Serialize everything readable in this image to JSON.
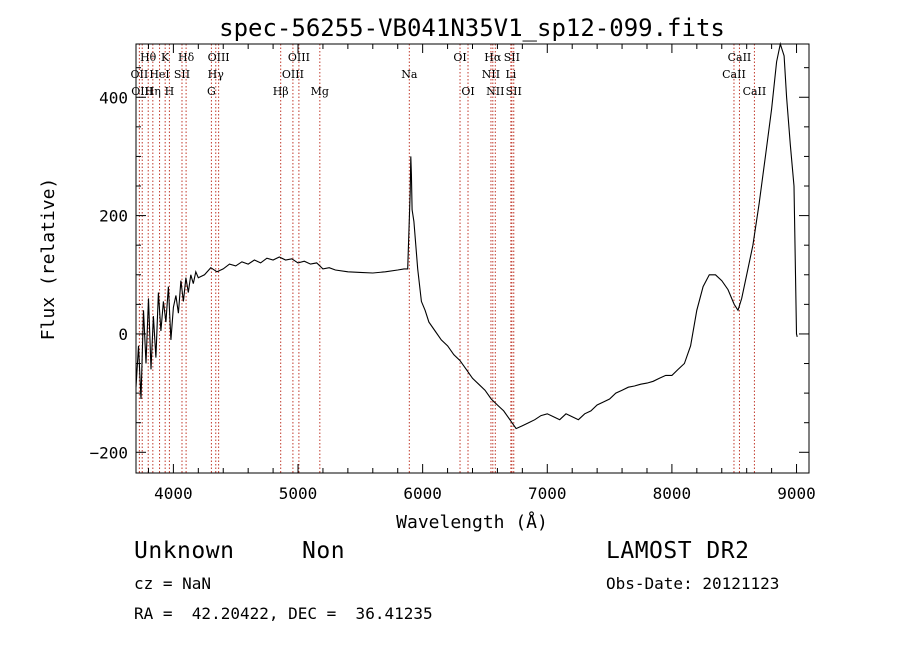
{
  "chart_data": {
    "type": "line",
    "title": "spec-56255-VB041N35V1_sp12-099.fits",
    "xlabel": "Wavelength (Å)",
    "ylabel": "Flux (relative)",
    "xlim": [
      3700,
      9100
    ],
    "ylim": [
      -235,
      490
    ],
    "xticks": [
      4000,
      5000,
      6000,
      7000,
      8000,
      9000
    ],
    "yticks": [
      -200,
      0,
      200,
      400
    ],
    "xticklabels": [
      "4000",
      "5000",
      "6000",
      "7000",
      "8000",
      "9000"
    ],
    "yticklabels": [
      "−200",
      "0",
      "200",
      "400"
    ],
    "grid": false,
    "series": [
      {
        "name": "flux",
        "color": "#000000",
        "x": [
          3700,
          3720,
          3740,
          3760,
          3780,
          3800,
          3820,
          3840,
          3860,
          3880,
          3900,
          3920,
          3940,
          3960,
          3980,
          4000,
          4020,
          4040,
          4060,
          4080,
          4100,
          4120,
          4140,
          4160,
          4180,
          4200,
          4250,
          4300,
          4350,
          4400,
          4450,
          4500,
          4550,
          4600,
          4650,
          4700,
          4750,
          4800,
          4850,
          4900,
          4950,
          5000,
          5050,
          5100,
          5150,
          5200,
          5250,
          5300,
          5400,
          5500,
          5600,
          5700,
          5800,
          5850,
          5880,
          5900,
          5905,
          5910,
          5915,
          5930,
          5960,
          5990,
          6020,
          6050,
          6100,
          6150,
          6200,
          6250,
          6300,
          6350,
          6400,
          6450,
          6500,
          6550,
          6600,
          6650,
          6700,
          6750,
          6800,
          6850,
          6900,
          6950,
          7000,
          7050,
          7100,
          7150,
          7200,
          7250,
          7300,
          7350,
          7400,
          7450,
          7500,
          7550,
          7600,
          7650,
          7700,
          7750,
          7800,
          7850,
          7900,
          7950,
          8000,
          8050,
          8100,
          8150,
          8200,
          8250,
          8300,
          8350,
          8400,
          8450,
          8500,
          8530,
          8560,
          8600,
          8650,
          8700,
          8750,
          8800,
          8840,
          8870,
          8900,
          8920,
          8950,
          8980,
          9000,
          9005
        ],
        "y": [
          -90,
          -20,
          -110,
          40,
          -50,
          60,
          -60,
          30,
          -40,
          70,
          5,
          55,
          20,
          80,
          -10,
          45,
          65,
          35,
          90,
          55,
          95,
          70,
          100,
          85,
          105,
          95,
          100,
          112,
          105,
          110,
          118,
          115,
          122,
          118,
          125,
          120,
          128,
          125,
          130,
          125,
          127,
          120,
          123,
          118,
          120,
          110,
          112,
          108,
          105,
          104,
          103,
          105,
          108,
          110,
          110,
          240,
          300,
          270,
          210,
          190,
          110,
          55,
          40,
          20,
          5,
          -10,
          -20,
          -35,
          -45,
          -60,
          -75,
          -85,
          -95,
          -110,
          -120,
          -130,
          -145,
          -160,
          -155,
          -150,
          -145,
          -138,
          -135,
          -140,
          -145,
          -135,
          -140,
          -145,
          -135,
          -130,
          -120,
          -115,
          -110,
          -100,
          -95,
          -90,
          -88,
          -85,
          -83,
          -80,
          -75,
          -70,
          -70,
          -60,
          -50,
          -20,
          40,
          80,
          100,
          100,
          90,
          75,
          50,
          40,
          60,
          100,
          150,
          220,
          300,
          380,
          460,
          490,
          470,
          400,
          320,
          250,
          0,
          -5
        ]
      }
    ],
    "line_labels": [
      {
        "label": "Hθ",
        "x": 3798,
        "row": 0,
        "style": "solid"
      },
      {
        "label": "K",
        "x": 3934,
        "row": 0,
        "style": "solid"
      },
      {
        "label": "Hδ",
        "x": 4102,
        "row": 0,
        "style": "solid"
      },
      {
        "label": "OIII",
        "x": 4363,
        "row": 0,
        "style": "solid"
      },
      {
        "label": "OIII",
        "x": 5007,
        "row": 0,
        "style": "solid"
      },
      {
        "label": "OI",
        "x": 6300,
        "row": 0,
        "style": "solid"
      },
      {
        "label": "Hα",
        "x": 6563,
        "row": 0,
        "style": "solid"
      },
      {
        "label": "SII",
        "x": 6716,
        "row": 0,
        "style": "solid"
      },
      {
        "label": "CaII",
        "x": 8542,
        "row": 0,
        "style": "solid"
      },
      {
        "label": "OII",
        "x": 3727,
        "row": 1,
        "style": "solid"
      },
      {
        "label": "HeI",
        "x": 3889,
        "row": 1,
        "style": "solid"
      },
      {
        "label": "SII",
        "x": 4069,
        "row": 1,
        "style": "solid"
      },
      {
        "label": "Hγ",
        "x": 4340,
        "row": 1,
        "style": "solid"
      },
      {
        "label": "OIII",
        "x": 4959,
        "row": 1,
        "style": "solid"
      },
      {
        "label": "Na",
        "x": 5893,
        "row": 1,
        "style": "solid"
      },
      {
        "label": "NII",
        "x": 6548,
        "row": 1,
        "style": "solid"
      },
      {
        "label": "Li",
        "x": 6708,
        "row": 1,
        "style": "solid"
      },
      {
        "label": "CaII",
        "x": 8498,
        "row": 1,
        "style": "solid"
      },
      {
        "label": "OIII",
        "x": 3750,
        "row": 2,
        "style": "solid"
      },
      {
        "label": "Hη",
        "x": 3835,
        "row": 2,
        "style": "solid"
      },
      {
        "label": "H",
        "x": 3968,
        "row": 2,
        "style": "solid"
      },
      {
        "label": "G",
        "x": 4305,
        "row": 2,
        "style": "solid"
      },
      {
        "label": "Hβ",
        "x": 4861,
        "row": 2,
        "style": "solid"
      },
      {
        "label": "Mg",
        "x": 5175,
        "row": 2,
        "style": "solid"
      },
      {
        "label": "OI",
        "x": 6364,
        "row": 2,
        "style": "solid"
      },
      {
        "label": "NII",
        "x": 6583,
        "row": 2,
        "style": "solid"
      },
      {
        "label": "SII",
        "x": 6731,
        "row": 2,
        "style": "solid"
      },
      {
        "label": "CaII",
        "x": 8662,
        "row": 2,
        "style": "solid"
      }
    ],
    "line_color": "#c0392b"
  },
  "info": {
    "object_class": "Unknown",
    "object_subclass": "Non",
    "survey": "LAMOST DR2",
    "redshift_text": "cz = NaN",
    "obs_date_text": "Obs-Date: 20121123",
    "coords_text": "RA =  42.20422, DEC =  36.41235"
  }
}
